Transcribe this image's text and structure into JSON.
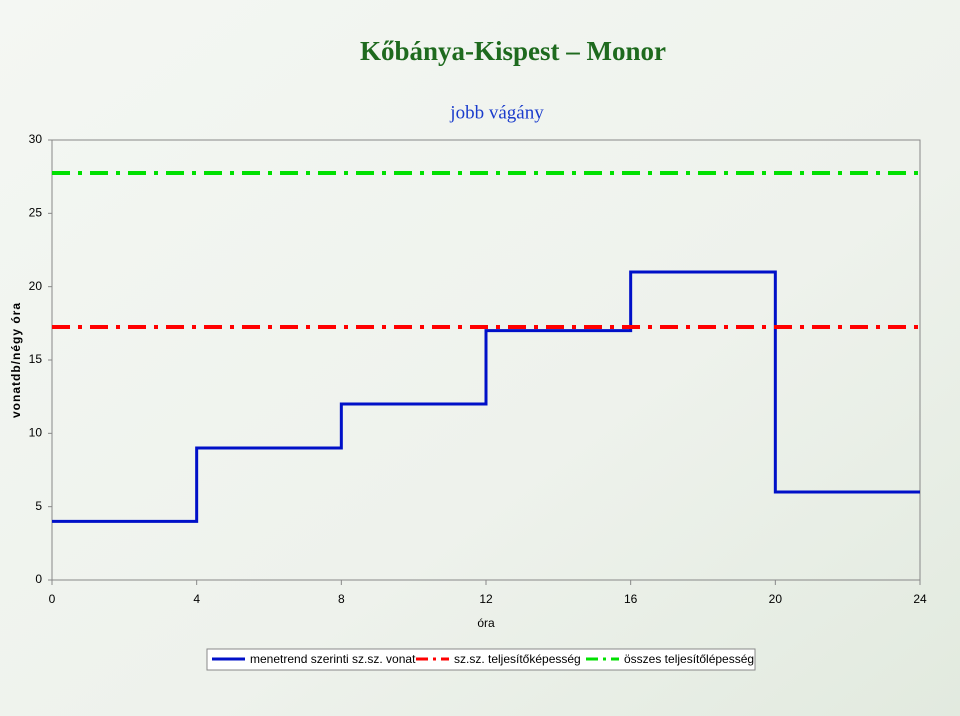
{
  "chart_data": {
    "type": "line",
    "step": "post",
    "title": "Kőbánya-Kispest – Monor",
    "subtitle": "jobb vágány",
    "x_label": "óra",
    "y_label": "vonatdb/négy óra",
    "xlim": [
      0,
      24
    ],
    "xticks": [
      0,
      4,
      8,
      12,
      16,
      20,
      24
    ],
    "ylim": [
      0,
      30
    ],
    "yticks": [
      0,
      5,
      10,
      15,
      20,
      25,
      30
    ],
    "series": [
      {
        "name": "menetrend szerinti sz.sz. vonat",
        "color": "#0010c8",
        "dash": "solid",
        "x": [
          0,
          4,
          8,
          12,
          16,
          20,
          24
        ],
        "values": [
          4,
          9,
          12,
          17,
          21,
          6,
          6
        ]
      },
      {
        "name": "sz.sz. teljesítőképesség",
        "color": "#ff0000",
        "dash": "dashdot",
        "x": [
          0,
          24
        ],
        "values": [
          17.25,
          17.25
        ]
      },
      {
        "name": "összes teljesítőlépesség",
        "color": "#00e000",
        "dash": "dashdot",
        "x": [
          0,
          24
        ],
        "values": [
          27.75,
          27.75
        ]
      }
    ]
  }
}
